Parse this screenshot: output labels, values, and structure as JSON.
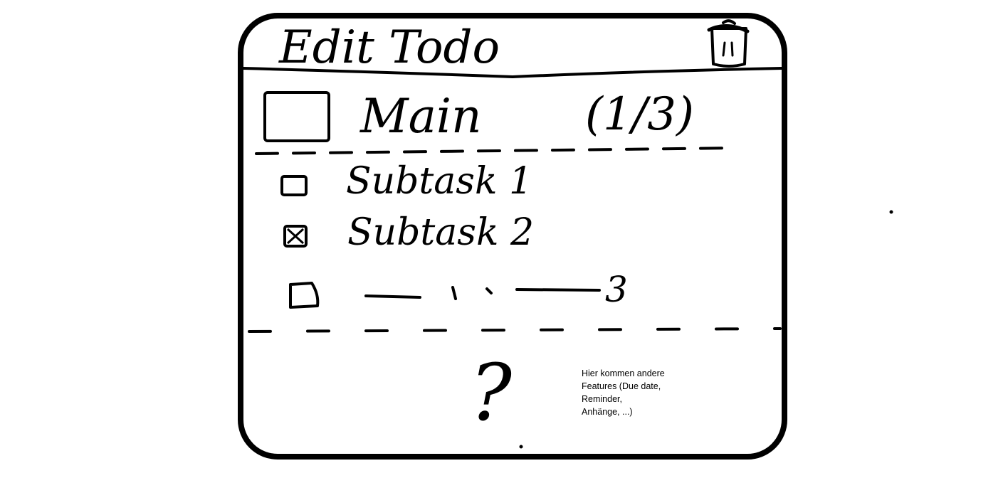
{
  "header": {
    "title": "Edit Todo",
    "delete_icon": "trash-icon"
  },
  "main_task": {
    "label": "Main",
    "progress": "(1/3)",
    "checked": false
  },
  "subtasks": [
    {
      "label": "Subtask 1",
      "checked": false
    },
    {
      "label": "Subtask 2",
      "checked": true
    },
    {
      "label": "3",
      "checked": false
    }
  ],
  "features": {
    "placeholder_mark": "?",
    "note_lines": [
      "Hier kommen andere",
      "Features (Due date,",
      "Reminder,",
      "Anhänge, ...)"
    ]
  },
  "colors": {
    "ink": "#000000",
    "paper": "#ffffff"
  }
}
